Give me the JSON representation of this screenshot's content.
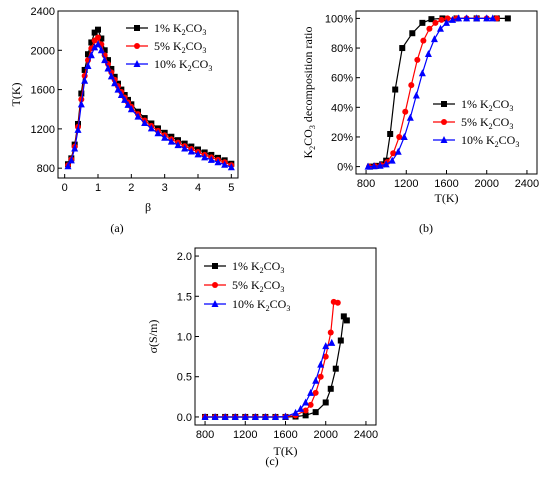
{
  "colors": {
    "s1": "#000000",
    "s5": "#ff0000",
    "s10": "#0000ff"
  },
  "chart_data": [
    {
      "type": "line",
      "panel_label": "(a)",
      "xlabel": "β",
      "ylabel": "T(K)",
      "xlim": [
        -0.2,
        5.2
      ],
      "ylim": [
        700,
        2400
      ],
      "xticks": [
        0,
        1,
        2,
        3,
        4,
        5
      ],
      "yticks": [
        800,
        1200,
        1600,
        2000,
        2400
      ],
      "grid": false,
      "legend": "top-right",
      "series": [
        {
          "name": "1% K2CO3",
          "name_parts": [
            "1% K",
            "2",
            "CO",
            "3"
          ],
          "color": "#000000",
          "marker": "square",
          "x": [
            0.1,
            0.2,
            0.3,
            0.4,
            0.5,
            0.6,
            0.7,
            0.8,
            0.9,
            1.0,
            1.1,
            1.2,
            1.3,
            1.4,
            1.5,
            1.6,
            1.7,
            1.8,
            1.9,
            2.0,
            2.2,
            2.4,
            2.6,
            2.8,
            3.0,
            3.2,
            3.4,
            3.6,
            3.8,
            4.0,
            4.2,
            4.4,
            4.6,
            4.8,
            5.0
          ],
          "y": [
            840,
            900,
            1040,
            1250,
            1560,
            1800,
            1960,
            2080,
            2180,
            2210,
            2120,
            2000,
            1900,
            1810,
            1730,
            1660,
            1600,
            1545,
            1495,
            1450,
            1375,
            1310,
            1255,
            1205,
            1160,
            1120,
            1085,
            1050,
            1020,
            990,
            960,
            935,
            905,
            880,
            845
          ]
        },
        {
          "name": "5% K2CO3",
          "name_parts": [
            "5% K",
            "2",
            "CO",
            "3"
          ],
          "color": "#ff0000",
          "marker": "circle",
          "x": [
            0.1,
            0.2,
            0.3,
            0.4,
            0.5,
            0.6,
            0.7,
            0.8,
            0.9,
            1.0,
            1.1,
            1.2,
            1.3,
            1.4,
            1.5,
            1.6,
            1.7,
            1.8,
            1.9,
            2.0,
            2.2,
            2.4,
            2.6,
            2.8,
            3.0,
            3.2,
            3.4,
            3.6,
            3.8,
            4.0,
            4.2,
            4.4,
            4.6,
            4.8,
            5.0
          ],
          "y": [
            830,
            890,
            1020,
            1220,
            1500,
            1740,
            1900,
            2020,
            2100,
            2130,
            2060,
            1950,
            1860,
            1775,
            1700,
            1635,
            1575,
            1520,
            1470,
            1425,
            1350,
            1285,
            1230,
            1180,
            1135,
            1095,
            1060,
            1025,
            995,
            965,
            935,
            910,
            885,
            860,
            830
          ]
        },
        {
          "name": "10% K2CO3",
          "name_parts": [
            "10% K",
            "2",
            "CO",
            "3"
          ],
          "color": "#0000ff",
          "marker": "triangle",
          "x": [
            0.1,
            0.2,
            0.3,
            0.4,
            0.5,
            0.6,
            0.7,
            0.8,
            0.9,
            1.0,
            1.1,
            1.2,
            1.3,
            1.4,
            1.5,
            1.6,
            1.7,
            1.8,
            1.9,
            2.0,
            2.2,
            2.4,
            2.6,
            2.8,
            3.0,
            3.2,
            3.4,
            3.6,
            3.8,
            4.0,
            4.2,
            4.4,
            4.6,
            4.8,
            5.0
          ],
          "y": [
            820,
            880,
            1000,
            1190,
            1450,
            1690,
            1840,
            1950,
            2030,
            2060,
            2000,
            1900,
            1815,
            1735,
            1665,
            1600,
            1545,
            1495,
            1445,
            1400,
            1325,
            1260,
            1205,
            1155,
            1110,
            1070,
            1035,
            1000,
            970,
            940,
            910,
            885,
            860,
            835,
            810
          ]
        }
      ]
    },
    {
      "type": "line",
      "panel_label": "(b)",
      "xlabel": "T(K)",
      "ylabel_parts": [
        "K",
        "2",
        "CO",
        "3",
        " decomposition ratio"
      ],
      "xlim": [
        700,
        2500
      ],
      "ylim": [
        -0.05,
        1.05
      ],
      "xticks": [
        800,
        1200,
        1600,
        2000,
        2400
      ],
      "yticks": [
        0,
        0.2,
        0.4,
        0.6,
        0.8,
        1.0
      ],
      "ytick_labels": [
        "0%",
        "20%",
        "40%",
        "60%",
        "80%",
        "100%"
      ],
      "grid": false,
      "legend": "bottom-right",
      "series": [
        {
          "name": "1% K2CO3",
          "name_parts": [
            "1% K",
            "2",
            "CO",
            "3"
          ],
          "color": "#000000",
          "marker": "square",
          "x": [
            840,
            900,
            960,
            1000,
            1040,
            1090,
            1160,
            1260,
            1360,
            1450,
            1560,
            1700,
            1900,
            2100,
            2210
          ],
          "y": [
            0,
            0.005,
            0.015,
            0.04,
            0.22,
            0.52,
            0.8,
            0.9,
            0.97,
            0.995,
            1.0,
            1.0,
            1.0,
            1.0,
            1.0
          ]
        },
        {
          "name": "5% K2CO3",
          "name_parts": [
            "5% K",
            "2",
            "CO",
            "3"
          ],
          "color": "#ff0000",
          "marker": "circle",
          "x": [
            830,
            890,
            950,
            1010,
            1070,
            1130,
            1190,
            1250,
            1310,
            1370,
            1430,
            1490,
            1550,
            1610,
            1700,
            1800,
            1900,
            2000,
            2100
          ],
          "y": [
            0,
            0.003,
            0.01,
            0.03,
            0.09,
            0.2,
            0.37,
            0.55,
            0.72,
            0.85,
            0.93,
            0.97,
            0.99,
            1.0,
            1.0,
            1.0,
            1.0,
            1.0,
            1.0
          ]
        },
        {
          "name": "10% K2CO3",
          "name_parts": [
            "10% K",
            "2",
            "CO",
            "3"
          ],
          "color": "#0000ff",
          "marker": "triangle",
          "x": [
            820,
            880,
            940,
            1000,
            1060,
            1120,
            1180,
            1240,
            1300,
            1360,
            1420,
            1480,
            1540,
            1600,
            1660,
            1720,
            1800,
            1900,
            2000,
            2060
          ],
          "y": [
            0,
            0.002,
            0.006,
            0.015,
            0.04,
            0.1,
            0.2,
            0.33,
            0.48,
            0.63,
            0.76,
            0.86,
            0.93,
            0.97,
            0.99,
            1.0,
            1.0,
            1.0,
            1.0,
            1.0
          ]
        }
      ]
    },
    {
      "type": "line",
      "panel_label": "(c)",
      "xlabel": "T(K)",
      "ylabel": "σ(S/m)",
      "xlim": [
        700,
        2500
      ],
      "ylim": [
        -0.1,
        2.1
      ],
      "xticks": [
        800,
        1200,
        1600,
        2000,
        2400
      ],
      "yticks": [
        0,
        0.5,
        1.0,
        1.5,
        2.0
      ],
      "ytick_labels": [
        "0.0",
        "0.5",
        "1.0",
        "1.5",
        "2.0"
      ],
      "grid": false,
      "legend": "top-left",
      "series": [
        {
          "name": "1% K2CO3",
          "name_parts": [
            "1% K",
            "2",
            "CO",
            "3"
          ],
          "color": "#000000",
          "marker": "square",
          "x": [
            800,
            900,
            1000,
            1100,
            1200,
            1300,
            1400,
            1500,
            1600,
            1700,
            1800,
            1900,
            2000,
            2050,
            2100,
            2150,
            2180,
            2210
          ],
          "y": [
            0,
            0,
            0,
            0,
            0,
            0,
            0,
            0,
            0,
            0.005,
            0.02,
            0.06,
            0.18,
            0.35,
            0.6,
            0.95,
            1.25,
            1.2
          ]
        },
        {
          "name": "5% K2CO3",
          "name_parts": [
            "5% K",
            "2",
            "CO",
            "3"
          ],
          "color": "#ff0000",
          "marker": "circle",
          "x": [
            800,
            900,
            1000,
            1100,
            1200,
            1300,
            1400,
            1500,
            1600,
            1700,
            1800,
            1850,
            1900,
            1950,
            2000,
            2050,
            2080,
            2120
          ],
          "y": [
            0,
            0,
            0,
            0,
            0,
            0,
            0,
            0,
            0.003,
            0.02,
            0.08,
            0.15,
            0.3,
            0.5,
            0.75,
            1.05,
            1.43,
            1.42
          ]
        },
        {
          "name": "10% K2CO3",
          "name_parts": [
            "10% K",
            "2",
            "CO",
            "3"
          ],
          "color": "#0000ff",
          "marker": "triangle",
          "x": [
            800,
            900,
            1000,
            1100,
            1200,
            1300,
            1400,
            1500,
            1600,
            1700,
            1750,
            1800,
            1850,
            1900,
            1950,
            2000,
            2060
          ],
          "y": [
            0,
            0,
            0,
            0,
            0,
            0,
            0,
            0,
            0.005,
            0.05,
            0.1,
            0.18,
            0.3,
            0.45,
            0.65,
            0.88,
            0.92
          ]
        }
      ]
    }
  ]
}
